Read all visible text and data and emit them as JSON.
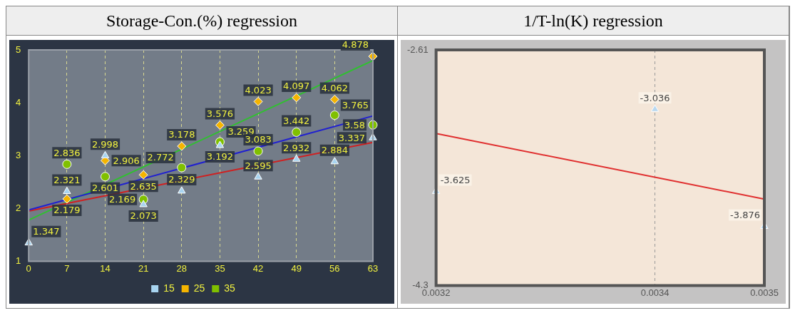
{
  "chart_data": [
    {
      "type": "scatter",
      "title": "Storage-Con.(%) regression",
      "x": [
        0,
        7,
        14,
        21,
        28,
        35,
        42,
        49,
        56,
        63
      ],
      "xlim": [
        0,
        63
      ],
      "xticks": [
        0,
        7,
        14,
        21,
        28,
        35,
        42,
        49,
        56,
        63
      ],
      "ylim": [
        1,
        5
      ],
      "yticks": [
        1,
        2,
        3,
        4,
        5
      ],
      "grid": "x",
      "legend": "bottom",
      "series": [
        {
          "name": "15",
          "color": "#a8d4f0",
          "marker": "triangle",
          "values": [
            1.347,
            2.321,
            2.998,
            2.073,
            2.329,
            3.192,
            2.595,
            2.932,
            2.884,
            3.337
          ],
          "value_labels": [
            "1.347",
            "2.321",
            "2.998",
            "2.073",
            "2.329",
            "3.192",
            "2.595",
            "2.932",
            "2.884",
            "3.337"
          ]
        },
        {
          "name": "25",
          "color": "#f5b400",
          "marker": "diamond",
          "values": [
            null,
            2.179,
            2.906,
            2.635,
            3.178,
            3.576,
            4.023,
            4.097,
            4.062,
            4.878
          ],
          "value_labels": [
            null,
            "2.179",
            "2.906",
            "2.635",
            "3.178",
            "3.576",
            "4.023",
            "4.097",
            "4.062",
            "4.878"
          ]
        },
        {
          "name": "35",
          "color": "#80c000",
          "marker": "circle",
          "values": [
            null,
            2.836,
            2.601,
            2.169,
            2.772,
            3.259,
            3.083,
            3.442,
            3.765,
            3.58
          ],
          "value_labels": [
            null,
            "2.836",
            "2.601",
            "2.169",
            "2.772",
            "3.259",
            "3.083",
            "3.442",
            "3.765",
            "3.58"
          ]
        },
        {
          "type": "line",
          "color": "#2020d0",
          "x": [
            0,
            63
          ],
          "values": [
            1.97,
            3.75
          ]
        },
        {
          "type": "line",
          "color": "#d02020",
          "x": [
            0,
            63
          ],
          "values": [
            1.95,
            3.25
          ]
        },
        {
          "type": "line",
          "color": "#30c030",
          "x": [
            0,
            63
          ],
          "values": [
            1.78,
            4.8
          ]
        }
      ]
    },
    {
      "type": "scatter",
      "title": "1/T-ln(K) regression",
      "x": [
        0.0032,
        0.0034,
        0.0035
      ],
      "xlim": [
        0.0032,
        0.0035
      ],
      "xticks": [
        0.0032,
        0.0034,
        0.0035
      ],
      "ylim": [
        -4.3,
        -2.61
      ],
      "yticks": [
        -4.3,
        -2.61
      ],
      "grid": "x",
      "series": [
        {
          "color": "#b8d8f0",
          "marker": "triangle",
          "values": [
            -3.625,
            -3.036,
            -3.876
          ],
          "value_labels": [
            "-3.625",
            "-3.036",
            "-3.876"
          ]
        },
        {
          "type": "line",
          "color": "#e03030",
          "x": [
            0.0032,
            0.0035
          ],
          "values": [
            -3.21,
            -3.68
          ]
        }
      ]
    }
  ]
}
